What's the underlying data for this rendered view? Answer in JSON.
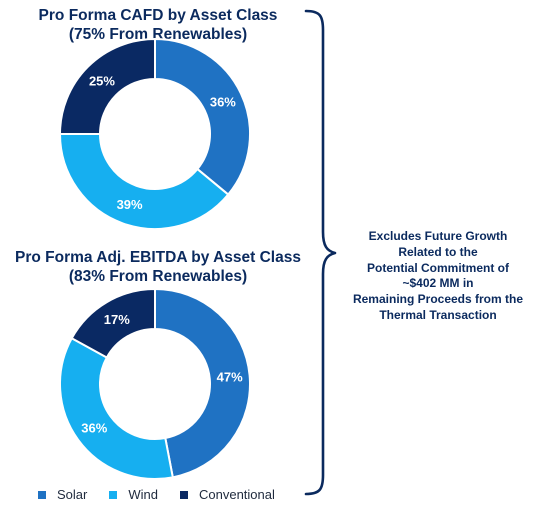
{
  "colors": {
    "solar": "#1f72c3",
    "wind": "#16aff0",
    "conventional": "#0a2963",
    "title": "#0b2a5e",
    "brace": "#0b2a5e"
  },
  "chart_data": [
    {
      "type": "pie",
      "title": "Pro Forma CAFD by Asset Class",
      "subtitle": "(75% From Renewables)",
      "categories": [
        "Solar",
        "Wind",
        "Conventional"
      ],
      "values": [
        36,
        39,
        25
      ],
      "data_labels": [
        "36%",
        "39%",
        "25%"
      ],
      "legend_position": "bottom"
    },
    {
      "type": "pie",
      "title": "Pro Forma  Adj. EBITDA by Asset Class",
      "subtitle": "(83% From Renewables)",
      "categories": [
        "Solar",
        "Wind",
        "Conventional"
      ],
      "values": [
        47,
        36,
        17
      ],
      "data_labels": [
        "47%",
        "36%",
        "17%"
      ],
      "legend_position": "bottom"
    }
  ],
  "legend": [
    {
      "label": "Solar",
      "color_key": "solar"
    },
    {
      "label": "Wind",
      "color_key": "wind"
    },
    {
      "label": "Conventional",
      "color_key": "conventional"
    }
  ],
  "note": {
    "lines": [
      "Excludes Future Growth",
      "Related to the",
      "Potential Commitment of",
      "~$402 MM in",
      "Remaining Proceeds from the",
      "Thermal Transaction"
    ]
  }
}
